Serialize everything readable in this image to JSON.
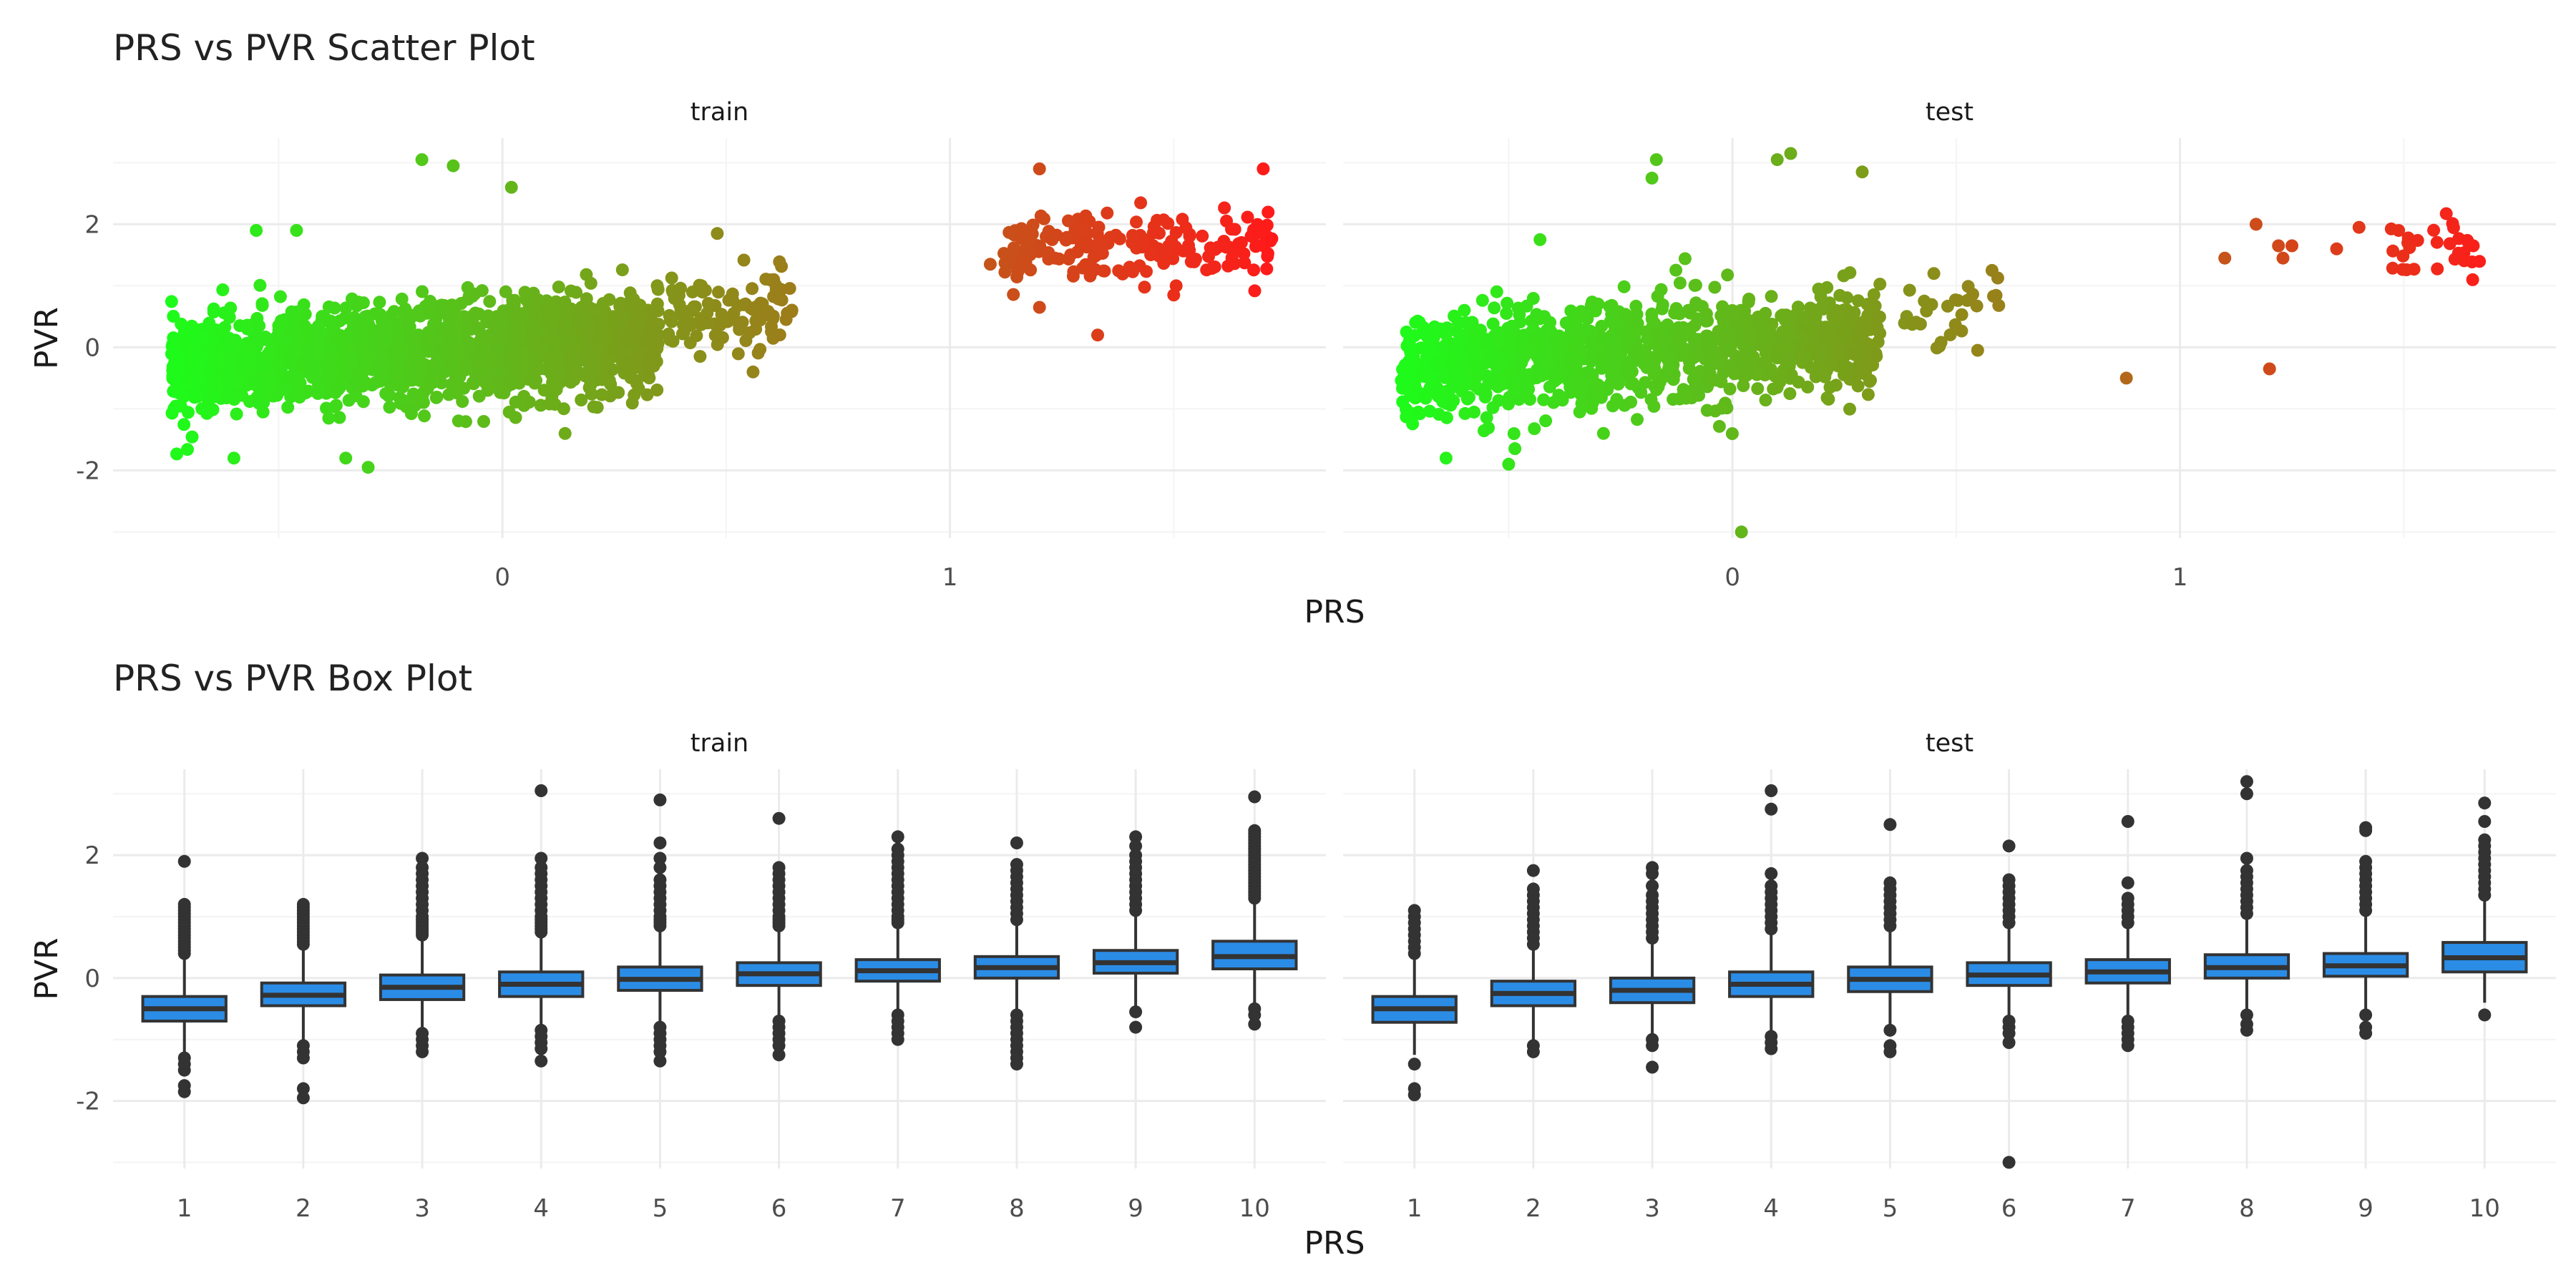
{
  "chart_data": [
    {
      "type": "scatter",
      "title": "PRS vs PVR Scatter Plot",
      "xlabel": "PRS",
      "ylabel": "PVR",
      "xlim": [
        -0.87,
        1.84
      ],
      "ylim": [
        -3.1,
        3.4
      ],
      "x_ticks": [
        {
          "v": 0,
          "label": "0"
        },
        {
          "v": 1,
          "label": "1"
        }
      ],
      "y_ticks": [
        {
          "v": -2,
          "label": "-2"
        },
        {
          "v": 0,
          "label": "0"
        },
        {
          "v": 2,
          "label": "2"
        }
      ],
      "color_scale": {
        "low": "#1aff1a",
        "high": "#ff1a1a",
        "by": "PRS"
      },
      "grid": true,
      "legend": "none",
      "facets": [
        {
          "label": "train",
          "clusters": [
            {
              "x_range": [
                -0.74,
                0.35
              ],
              "y_center": -0.1,
              "slope": 0.9,
              "y_spread": 0.4,
              "n": 1600
            },
            {
              "x_range": [
                0.37,
                0.65
              ],
              "y_center": 0.6,
              "slope": 0.2,
              "y_spread": 0.3,
              "n": 110
            },
            {
              "x_range": [
                1.12,
                1.72
              ],
              "y_center": 1.6,
              "slope": 0.1,
              "y_spread": 0.3,
              "n": 190
            }
          ],
          "outliers": [
            {
              "x": -0.18,
              "y": 3.05
            },
            {
              "x": -0.11,
              "y": 2.95
            },
            {
              "x": 0.02,
              "y": 2.6
            },
            {
              "x": -0.55,
              "y": 1.9
            },
            {
              "x": -0.46,
              "y": 1.9
            },
            {
              "x": -0.3,
              "y": -1.95
            },
            {
              "x": -0.35,
              "y": -1.8
            },
            {
              "x": -0.6,
              "y": -1.8
            },
            {
              "x": 0.14,
              "y": -1.4
            },
            {
              "x": 0.48,
              "y": 1.85
            },
            {
              "x": 0.56,
              "y": -0.4
            },
            {
              "x": 1.2,
              "y": 2.9
            },
            {
              "x": 1.7,
              "y": 2.9
            },
            {
              "x": 1.2,
              "y": 0.65
            },
            {
              "x": 1.33,
              "y": 0.2
            },
            {
              "x": 1.09,
              "y": 1.35
            },
            {
              "x": 1.5,
              "y": 0.85
            }
          ]
        },
        {
          "label": "test",
          "clusters": [
            {
              "x_range": [
                -0.74,
                0.33
              ],
              "y_center": -0.1,
              "slope": 0.9,
              "y_spread": 0.42,
              "n": 1100
            },
            {
              "x_range": [
                0.38,
                0.6
              ],
              "y_center": 0.6,
              "slope": 0.2,
              "y_spread": 0.3,
              "n": 28
            },
            {
              "x_range": [
                1.47,
                1.68
              ],
              "y_center": 1.55,
              "slope": 0.1,
              "y_spread": 0.25,
              "n": 30
            }
          ],
          "outliers": [
            {
              "x": -0.17,
              "y": 3.05
            },
            {
              "x": 0.13,
              "y": 3.15
            },
            {
              "x": 0.1,
              "y": 3.05
            },
            {
              "x": -0.18,
              "y": 2.75
            },
            {
              "x": 0.29,
              "y": 2.85
            },
            {
              "x": 0.02,
              "y": -3.0
            },
            {
              "x": 0.88,
              "y": -0.5
            },
            {
              "x": 1.2,
              "y": -0.35
            },
            {
              "x": 1.1,
              "y": 1.45
            },
            {
              "x": 1.17,
              "y": 2.0
            },
            {
              "x": 1.22,
              "y": 1.65
            },
            {
              "x": 1.25,
              "y": 1.65
            },
            {
              "x": 1.23,
              "y": 1.45
            },
            {
              "x": 1.4,
              "y": 1.95
            },
            {
              "x": 1.35,
              "y": 1.6
            },
            {
              "x": -0.5,
              "y": -1.9
            },
            {
              "x": -0.64,
              "y": -1.8
            },
            {
              "x": -0.43,
              "y": 1.75
            },
            {
              "x": 0.45,
              "y": 1.2
            },
            {
              "x": 0.58,
              "y": 1.25
            }
          ]
        }
      ]
    },
    {
      "type": "box",
      "title": "PRS vs PVR Box Plot",
      "xlabel": "PRS",
      "ylabel": "PVR",
      "categories": [
        "1",
        "2",
        "3",
        "4",
        "5",
        "6",
        "7",
        "8",
        "9",
        "10"
      ],
      "ylim": [
        -3.1,
        3.4
      ],
      "y_ticks": [
        {
          "v": -2,
          "label": "-2"
        },
        {
          "v": 0,
          "label": "0"
        },
        {
          "v": 2,
          "label": "2"
        }
      ],
      "box_fill": "#2b8ce6",
      "grid": true,
      "facets": [
        {
          "label": "train",
          "boxes": [
            {
              "q1": -0.7,
              "med": -0.5,
              "q3": -0.3,
              "wlo": -1.25,
              "whi": 0.3,
              "outliers": [
                1.9,
                1.2,
                1.15,
                1.1,
                1.05,
                1.0,
                0.95,
                0.9,
                0.85,
                0.8,
                0.75,
                0.7,
                0.65,
                0.6,
                0.55,
                0.5,
                0.45,
                0.4,
                -1.3,
                -1.4,
                -1.5,
                -1.75,
                -1.85
              ]
            },
            {
              "q1": -0.45,
              "med": -0.28,
              "q3": -0.08,
              "wlo": -1.0,
              "whi": 0.5,
              "outliers": [
                1.2,
                1.15,
                1.1,
                1.05,
                1.0,
                0.95,
                0.9,
                0.85,
                0.8,
                0.75,
                0.7,
                0.65,
                0.6,
                0.55,
                -1.1,
                -1.2,
                -1.3,
                -1.8,
                -1.95
              ]
            },
            {
              "q1": -0.35,
              "med": -0.15,
              "q3": 0.05,
              "wlo": -0.85,
              "whi": 0.65,
              "outliers": [
                1.95,
                1.8,
                1.7,
                1.6,
                1.5,
                1.4,
                1.3,
                1.2,
                1.1,
                1.0,
                0.95,
                0.9,
                0.85,
                0.8,
                0.75,
                0.7,
                -0.9,
                -1.0,
                -1.1,
                -1.2
              ]
            },
            {
              "q1": -0.3,
              "med": -0.1,
              "q3": 0.1,
              "wlo": -0.8,
              "whi": 0.7,
              "outliers": [
                3.05,
                1.95,
                1.8,
                1.7,
                1.6,
                1.5,
                1.4,
                1.3,
                1.2,
                1.1,
                1.0,
                0.95,
                0.9,
                0.85,
                0.8,
                0.75,
                -0.85,
                -0.95,
                -1.05,
                -1.15,
                -1.35
              ]
            },
            {
              "q1": -0.2,
              "med": -0.02,
              "q3": 0.18,
              "wlo": -0.75,
              "whi": 0.8,
              "outliers": [
                2.9,
                2.2,
                1.95,
                1.8,
                1.6,
                1.5,
                1.4,
                1.3,
                1.2,
                1.1,
                1.0,
                0.95,
                0.9,
                0.85,
                -0.8,
                -0.9,
                -1.0,
                -1.1,
                -1.2,
                -1.35
              ]
            },
            {
              "q1": -0.12,
              "med": 0.07,
              "q3": 0.25,
              "wlo": -0.65,
              "whi": 0.8,
              "outliers": [
                2.6,
                1.8,
                1.7,
                1.6,
                1.5,
                1.4,
                1.3,
                1.2,
                1.1,
                1.0,
                0.95,
                0.9,
                0.85,
                -0.7,
                -0.8,
                -0.9,
                -1.0,
                -1.1,
                -1.25
              ]
            },
            {
              "q1": -0.05,
              "med": 0.12,
              "q3": 0.3,
              "wlo": -0.6,
              "whi": 0.85,
              "outliers": [
                2.3,
                2.1,
                2.0,
                1.9,
                1.8,
                1.7,
                1.6,
                1.5,
                1.4,
                1.3,
                1.2,
                1.1,
                1.0,
                0.95,
                0.9,
                -0.6,
                -0.7,
                -0.8,
                -0.9,
                -1.0
              ]
            },
            {
              "q1": 0.0,
              "med": 0.17,
              "q3": 0.35,
              "wlo": -0.55,
              "whi": 0.9,
              "outliers": [
                2.2,
                1.85,
                1.75,
                1.65,
                1.55,
                1.45,
                1.35,
                1.25,
                1.15,
                1.05,
                0.95,
                -0.6,
                -0.7,
                -0.8,
                -0.9,
                -1.0,
                -1.1,
                -1.2,
                -1.3,
                -1.4
              ]
            },
            {
              "q1": 0.08,
              "med": 0.25,
              "q3": 0.45,
              "wlo": -0.45,
              "whi": 1.05,
              "outliers": [
                2.3,
                2.15,
                2.0,
                1.9,
                1.8,
                1.7,
                1.6,
                1.5,
                1.4,
                1.3,
                1.2,
                1.1,
                -0.55,
                -0.8
              ]
            },
            {
              "q1": 0.15,
              "med": 0.35,
              "q3": 0.6,
              "wlo": -0.4,
              "whi": 1.25,
              "outliers": [
                2.95,
                2.4,
                2.35,
                2.3,
                2.25,
                2.2,
                2.15,
                2.1,
                2.05,
                2.0,
                1.95,
                1.9,
                1.85,
                1.8,
                1.75,
                1.7,
                1.65,
                1.6,
                1.55,
                1.5,
                1.45,
                1.4,
                1.35,
                1.3,
                -0.5,
                -0.6,
                -0.75
              ]
            }
          ]
        },
        {
          "label": "test",
          "boxes": [
            {
              "q1": -0.72,
              "med": -0.5,
              "q3": -0.3,
              "wlo": -1.25,
              "whi": 0.3,
              "outliers": [
                1.1,
                1.0,
                0.9,
                0.8,
                0.7,
                0.6,
                0.5,
                0.4,
                -1.4,
                -1.8,
                -1.9
              ]
            },
            {
              "q1": -0.45,
              "med": -0.25,
              "q3": -0.05,
              "wlo": -1.0,
              "whi": 0.5,
              "outliers": [
                1.75,
                1.45,
                1.35,
                1.25,
                1.15,
                1.05,
                0.95,
                0.85,
                0.75,
                0.65,
                0.55,
                -1.1,
                -1.2
              ]
            },
            {
              "q1": -0.4,
              "med": -0.2,
              "q3": 0.0,
              "wlo": -0.9,
              "whi": 0.6,
              "outliers": [
                1.8,
                1.7,
                1.5,
                1.35,
                1.25,
                1.15,
                1.05,
                0.95,
                0.85,
                0.75,
                0.65,
                -1.0,
                -1.1,
                -1.45
              ]
            },
            {
              "q1": -0.3,
              "med": -0.1,
              "q3": 0.1,
              "wlo": -0.85,
              "whi": 0.7,
              "outliers": [
                3.05,
                2.75,
                1.7,
                1.5,
                1.4,
                1.3,
                1.2,
                1.1,
                1.0,
                0.9,
                0.8,
                -0.95,
                -1.05,
                -1.15
              ]
            },
            {
              "q1": -0.22,
              "med": -0.02,
              "q3": 0.18,
              "wlo": -0.75,
              "whi": 0.8,
              "outliers": [
                2.5,
                1.55,
                1.45,
                1.35,
                1.25,
                1.15,
                1.05,
                0.95,
                0.85,
                -0.85,
                -1.1,
                -1.2
              ]
            },
            {
              "q1": -0.12,
              "med": 0.05,
              "q3": 0.25,
              "wlo": -0.65,
              "whi": 0.85,
              "outliers": [
                2.15,
                1.6,
                1.5,
                1.4,
                1.3,
                1.2,
                1.1,
                1.0,
                0.9,
                -0.7,
                -0.8,
                -0.9,
                -1.05,
                -3.0
              ]
            },
            {
              "q1": -0.08,
              "med": 0.1,
              "q3": 0.3,
              "wlo": -0.6,
              "whi": 0.85,
              "outliers": [
                2.55,
                1.55,
                1.3,
                1.2,
                1.1,
                1.0,
                0.9,
                -0.7,
                -0.8,
                -0.9,
                -1.0,
                -1.1
              ]
            },
            {
              "q1": 0.0,
              "med": 0.17,
              "q3": 0.38,
              "wlo": -0.5,
              "whi": 0.95,
              "outliers": [
                3.2,
                3.0,
                1.95,
                1.75,
                1.65,
                1.55,
                1.45,
                1.35,
                1.25,
                1.15,
                1.05,
                -0.6,
                -0.75,
                -0.85
              ]
            },
            {
              "q1": 0.03,
              "med": 0.2,
              "q3": 0.4,
              "wlo": -0.5,
              "whi": 1.0,
              "outliers": [
                2.45,
                2.4,
                1.9,
                1.8,
                1.7,
                1.6,
                1.5,
                1.4,
                1.3,
                1.2,
                1.1,
                -0.6,
                -0.8,
                -0.9
              ]
            },
            {
              "q1": 0.1,
              "med": 0.33,
              "q3": 0.58,
              "wlo": -0.4,
              "whi": 1.25,
              "outliers": [
                2.85,
                2.55,
                2.25,
                2.15,
                2.05,
                1.95,
                1.85,
                1.75,
                1.65,
                1.55,
                1.45,
                1.35,
                -0.6
              ]
            }
          ]
        }
      ]
    }
  ]
}
